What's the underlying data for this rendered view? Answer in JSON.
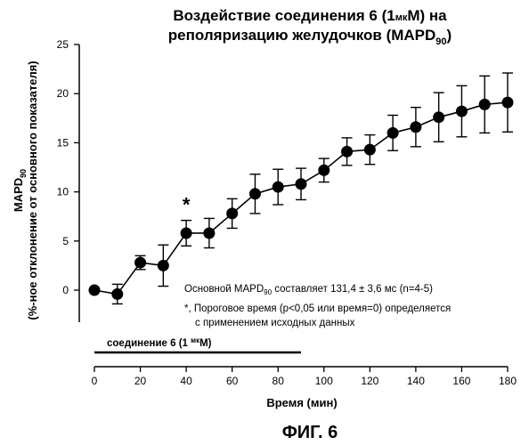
{
  "chart_data": {
    "type": "line",
    "title": {
      "line1": {
        "prefix": "Воздействие соединения 6 (1",
        "unit_small": "мк",
        "suffix": "M) на"
      },
      "line2": {
        "text": "реполяризацию желудочков (MAPD",
        "sub": "90",
        "close": ")"
      }
    },
    "ylabel": {
      "line1": {
        "text": "MAPD",
        "sub": "90"
      },
      "line2": "(%-ное отклонение от основного показателя)"
    },
    "xlabel": "Время (мин)",
    "xlim": [
      0,
      180
    ],
    "ylim": [
      0,
      25
    ],
    "x_ticks": [
      0,
      20,
      40,
      60,
      80,
      100,
      120,
      140,
      160,
      180
    ],
    "y_ticks": [
      0,
      5,
      10,
      15,
      20,
      25
    ],
    "grid": false,
    "series": [
      {
        "x": [
          0,
          10,
          20,
          30,
          40,
          50,
          60,
          70,
          80,
          90,
          100,
          110,
          120,
          130,
          140,
          150,
          160,
          170,
          180
        ],
        "y": [
          0,
          -0.4,
          2.8,
          2.5,
          5.8,
          5.8,
          7.8,
          9.8,
          10.5,
          10.8,
          12.2,
          14.1,
          14.3,
          16.0,
          16.6,
          17.6,
          18.2,
          18.9,
          19.1
        ],
        "err": [
          0,
          1.0,
          0.7,
          2.1,
          1.3,
          1.5,
          1.5,
          2.0,
          1.8,
          1.6,
          1.2,
          1.4,
          1.5,
          1.8,
          2.0,
          2.5,
          2.6,
          2.9,
          3.0
        ]
      }
    ],
    "significance": {
      "x": 40,
      "symbol": "*"
    },
    "annotations": {
      "line1": {
        "prefix": "Основной MAPD",
        "sub": "90",
        "suffix": " составляет 131,4 ± 3,6 мс (n=4-5)"
      },
      "line2": "*, Пороговое время (p<0,05 или время=0) определяется",
      "line3": "с применением исходных данных"
    },
    "treatment_bar": {
      "x_start": 0,
      "x_end": 90,
      "label": {
        "prefix": "соединение 6 (1 ",
        "unit_small": "мк",
        "suffix": "M)"
      }
    }
  },
  "figure_label": "ФИГ. 6"
}
